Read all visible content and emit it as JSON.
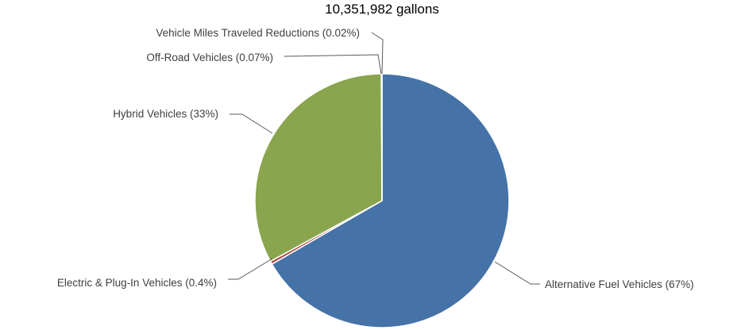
{
  "chart_data": {
    "type": "pie",
    "title": "10,351,982 gallons",
    "slices": [
      {
        "name": "Alternative Fuel Vehicles",
        "label": "Alternative Fuel Vehicles (67%)",
        "value": 67,
        "color": "#4572A7"
      },
      {
        "name": "Electric & Plug-In Vehicles",
        "label": "Electric & Plug-In Vehicles (0.4%)",
        "value": 0.4,
        "color": "#AA4643"
      },
      {
        "name": "Hybrid Vehicles",
        "label": "Hybrid Vehicles (33%)",
        "value": 33,
        "color": "#89A54E"
      },
      {
        "name": "Off-Road Vehicles",
        "label": "Off-Road Vehicles (0.07%)",
        "value": 0.07,
        "color": "#71588F"
      },
      {
        "name": "Vehicle Miles Traveled Reductions",
        "label": "Vehicle Miles Traveled Reductions (0.02%)",
        "value": 0.02,
        "color": "#4198AF"
      }
    ],
    "start_angle_deg": 0,
    "direction": "clockwise"
  }
}
